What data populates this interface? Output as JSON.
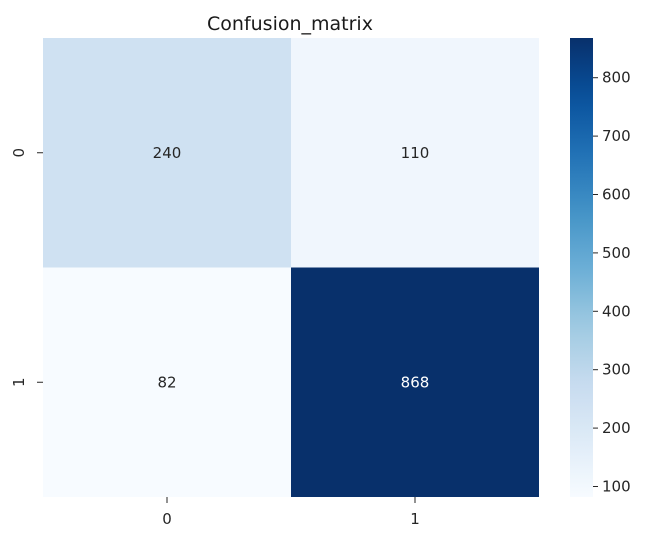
{
  "chart_data": {
    "type": "heatmap",
    "title": "Confusion_matrix",
    "xlabel": "",
    "ylabel": "",
    "x_categories": [
      "0",
      "1"
    ],
    "y_categories": [
      "0",
      "1"
    ],
    "values": [
      [
        240,
        110
      ],
      [
        82,
        868
      ]
    ],
    "colormap": "Blues",
    "colorbar": {
      "range": [
        82,
        868
      ],
      "ticks": [
        100,
        200,
        300,
        400,
        500,
        600,
        700,
        800
      ],
      "tick_labels": [
        "100",
        "200",
        "300",
        "400",
        "500",
        "600",
        "700",
        "800"
      ]
    },
    "annotated": true,
    "grid": false,
    "colorbar_placement": "right"
  }
}
